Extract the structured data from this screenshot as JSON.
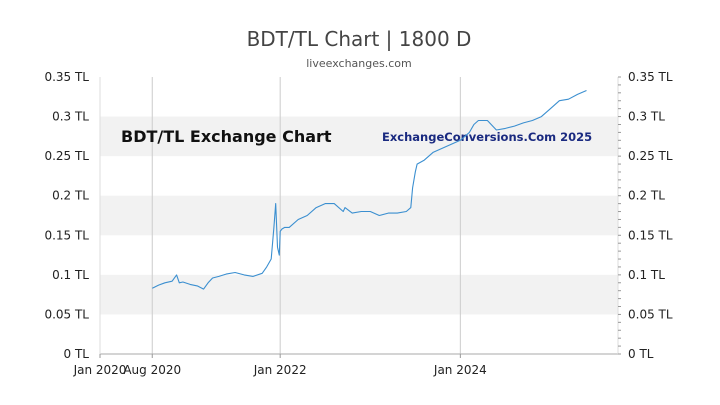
{
  "chart_data": {
    "type": "line",
    "title": "BDT/TL Chart | 1800 D",
    "subtitle": "liveexchanges.com",
    "watermark_left": "BDT/TL Exchange Chart",
    "watermark_right": "ExchangeConversions.Com 2025",
    "xlabel": "",
    "ylabel": "",
    "x_range": [
      2020.0,
      2025.75
    ],
    "ylim": [
      0,
      0.35
    ],
    "y_ticks": [
      0,
      0.05,
      0.1,
      0.15,
      0.2,
      0.25,
      0.3,
      0.35
    ],
    "y_tick_labels": [
      "0 TL",
      "0.05 TL",
      "0.1 TL",
      "0.15 TL",
      "0.2 TL",
      "0.25 TL",
      "0.3 TL",
      "0.35 TL"
    ],
    "x_ticks": [
      {
        "label": "Jan 2020",
        "x": 2020.0,
        "gridline": false
      },
      {
        "label": "Aug 2020",
        "x": 2020.58,
        "gridline": true
      },
      {
        "label": "Jan 2022",
        "x": 2022.0,
        "gridline": true
      },
      {
        "label": "Jan 2024",
        "x": 2024.0,
        "gridline": true
      }
    ],
    "line_color": "#3b8fd0",
    "band_color": "#f2f2f2",
    "grid_color": "#cccccc",
    "series": [
      {
        "name": "BDT/TL",
        "x": [
          2020.58,
          2020.65,
          2020.72,
          2020.8,
          2020.85,
          2020.88,
          2020.92,
          2021.0,
          2021.08,
          2021.15,
          2021.2,
          2021.25,
          2021.32,
          2021.4,
          2021.5,
          2021.6,
          2021.7,
          2021.8,
          2021.85,
          2021.9,
          2021.93,
          2021.95,
          2021.97,
          2021.99,
          2022.0,
          2022.02,
          2022.05,
          2022.1,
          2022.2,
          2022.3,
          2022.4,
          2022.5,
          2022.6,
          2022.7,
          2022.72,
          2022.8,
          2022.9,
          2023.0,
          2023.1,
          2023.2,
          2023.3,
          2023.4,
          2023.45,
          2023.47,
          2023.5,
          2023.52,
          2023.6,
          2023.7,
          2023.8,
          2023.9,
          2024.0,
          2024.1,
          2024.15,
          2024.2,
          2024.3,
          2024.4,
          2024.5,
          2024.6,
          2024.7,
          2024.8,
          2024.9,
          2025.0,
          2025.1,
          2025.2,
          2025.3,
          2025.4
        ],
        "values": [
          0.083,
          0.087,
          0.09,
          0.092,
          0.1,
          0.09,
          0.091,
          0.088,
          0.086,
          0.082,
          0.09,
          0.096,
          0.098,
          0.101,
          0.103,
          0.1,
          0.098,
          0.102,
          0.11,
          0.12,
          0.16,
          0.19,
          0.135,
          0.125,
          0.155,
          0.158,
          0.16,
          0.16,
          0.17,
          0.175,
          0.185,
          0.19,
          0.19,
          0.18,
          0.185,
          0.178,
          0.18,
          0.18,
          0.175,
          0.178,
          0.178,
          0.18,
          0.185,
          0.21,
          0.23,
          0.24,
          0.245,
          0.255,
          0.26,
          0.265,
          0.27,
          0.28,
          0.29,
          0.295,
          0.295,
          0.283,
          0.285,
          0.288,
          0.292,
          0.295,
          0.3,
          0.31,
          0.32,
          0.322,
          0.328,
          0.333
        ]
      }
    ]
  }
}
